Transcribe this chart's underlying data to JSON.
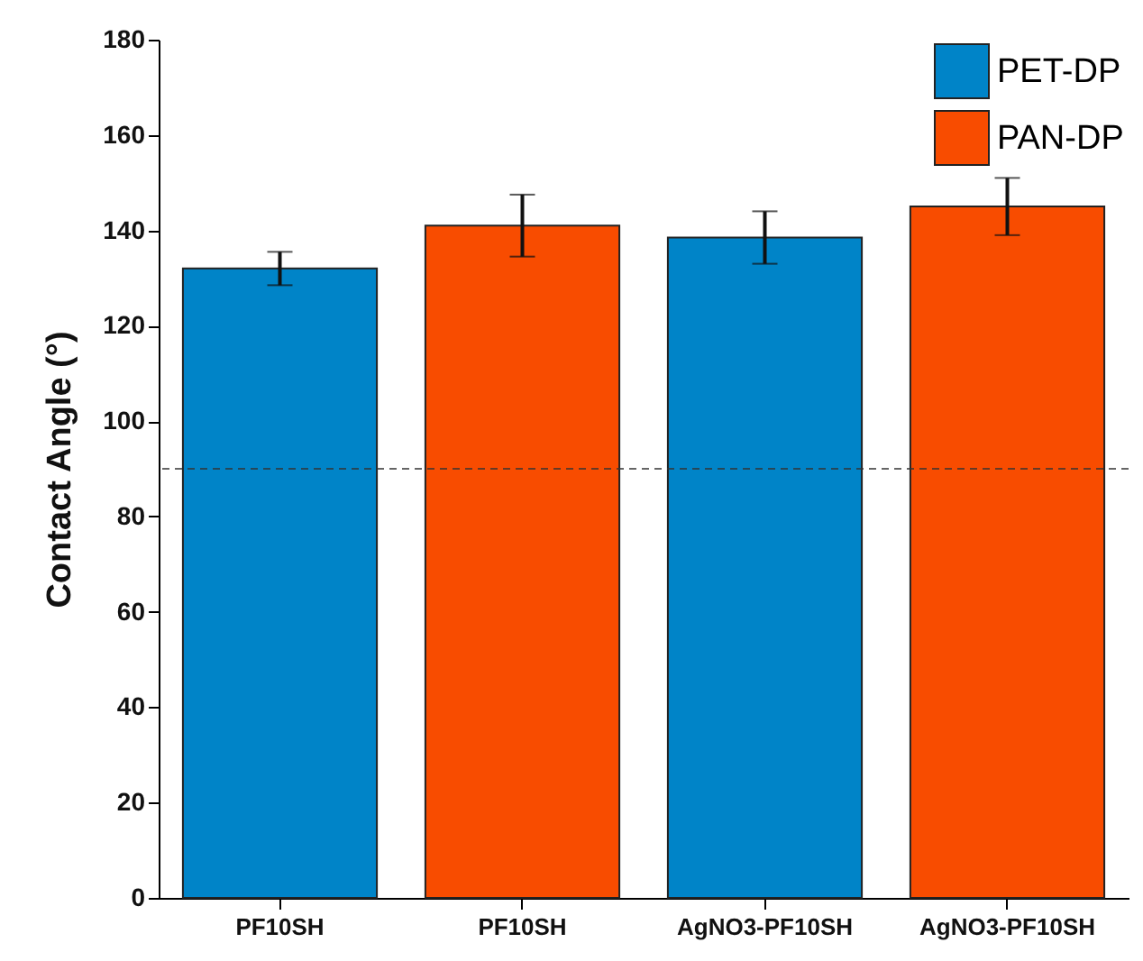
{
  "chart_data": {
    "type": "bar",
    "ylabel": "Contact Angle (°)",
    "categories": [
      "PF10SH",
      "PF10SH",
      "AgNO3-PF10SH",
      "AgNO3-PF10SH"
    ],
    "series": [
      {
        "name": "PET-DP",
        "color": "#0084c8",
        "values": [
          132,
          null,
          138.5,
          null
        ],
        "errors": [
          3.5,
          null,
          5.5,
          null
        ]
      },
      {
        "name": "PAN-DP",
        "color": "#f84c00",
        "values": [
          null,
          141,
          null,
          145
        ],
        "errors": [
          null,
          6.5,
          null,
          6
        ]
      }
    ],
    "ylim": [
      0,
      180
    ],
    "yticks": [
      0,
      20,
      40,
      60,
      80,
      100,
      120,
      140,
      160,
      180
    ],
    "ref_lines": [
      {
        "axis": "y",
        "value": 90,
        "color": "#333333",
        "line_style": "dashed"
      }
    ],
    "legend": "top right",
    "grid": false
  }
}
